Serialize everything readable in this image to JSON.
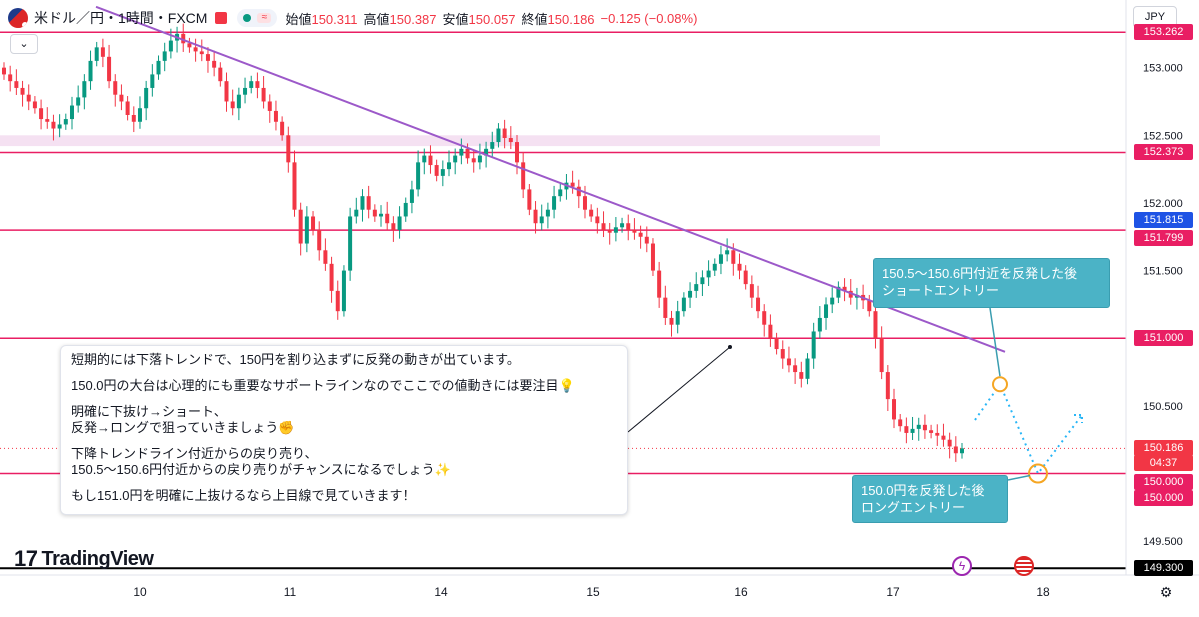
{
  "header": {
    "symbol": "米ドル／円・1時間・FXCM",
    "open_label": "始値",
    "open": "150.311",
    "high_label": "高値",
    "high": "150.387",
    "low_label": "安値",
    "low": "150.057",
    "close_label": "終値",
    "close": "150.186",
    "change": "−0.125 (−0.08%)",
    "wave_icon": "≈"
  },
  "currency_button": "JPY",
  "collapse_icon": "chevron-down-icon",
  "brand": "TradingView",
  "note": {
    "lines": [
      "短期的には下落トレンドで、150円を割り込まずに反発の動きが出ています。",
      "150.0円の大台は心理的にも重要なサポートラインなのでここでの値動きには要注目💡",
      "明確に下抜け→ショート、",
      "反発→ロングで狙っていきましょう✊",
      "下降トレンドライン付近からの戻り売り、",
      "150.5〜150.6円付近からの戻り売りがチャンスになるでしょう✨",
      "もし151.0円を明確に上抜けるなら上目線で見ていきます！"
    ]
  },
  "callouts": {
    "short": [
      "150.5〜150.6円付近を反発した後",
      "ショートエントリー"
    ],
    "long": [
      "150.0円を反発した後",
      "ロングエントリー"
    ]
  },
  "price_labels": {
    "current_price": "150.186",
    "countdown": "04:37",
    "mark_151815": "151.815",
    "levels": [
      "153.262",
      "152.373",
      "151.799",
      "151.000",
      "150.000",
      "150.000",
      "149.300"
    ]
  },
  "chart_data": {
    "type": "candlestick",
    "ylim": [
      149.25,
      153.5
    ],
    "y_ticks": [
      "153.000",
      "152.500",
      "152.000",
      "151.500",
      "150.500",
      "149.500"
    ],
    "x_ticks": [
      "10",
      "11",
      "14",
      "15",
      "16",
      "17",
      "18"
    ],
    "candle_count": 156,
    "bullish_color": "#089981",
    "bearish_color": "#f23645",
    "horizontal_lines": [
      153.262,
      152.373,
      151.799,
      151.0,
      150.0
    ],
    "horizontal_line_color": "#e91e63",
    "bottom_line": 149.3,
    "resistance_zone": [
      152.42,
      152.5
    ],
    "trend_line": {
      "from": [
        "10",
        153.45
      ],
      "to": [
        "17",
        150.9
      ],
      "color": "#9c59c9"
    },
    "projection": [
      [
        150.55,
        "up"
      ],
      [
        150.66,
        "short-entry"
      ],
      [
        150.0,
        "long-entry"
      ],
      [
        150.38,
        "up"
      ]
    ],
    "closes": [
      152.95,
      152.9,
      152.85,
      152.8,
      152.75,
      152.7,
      152.62,
      152.6,
      152.55,
      152.58,
      152.62,
      152.72,
      152.78,
      152.9,
      153.05,
      153.15,
      153.08,
      152.9,
      152.8,
      152.75,
      152.65,
      152.6,
      152.7,
      152.85,
      152.95,
      153.05,
      153.12,
      153.2,
      153.25,
      153.18,
      153.15,
      153.12,
      153.1,
      153.05,
      153.0,
      152.9,
      152.75,
      152.7,
      152.8,
      152.85,
      152.9,
      152.85,
      152.75,
      152.68,
      152.6,
      152.5,
      152.3,
      151.95,
      151.7,
      151.9,
      151.8,
      151.65,
      151.55,
      151.35,
      151.2,
      151.5,
      151.9,
      151.95,
      152.05,
      151.95,
      151.9,
      151.92,
      151.85,
      151.8,
      151.9,
      152.0,
      152.1,
      152.3,
      152.35,
      152.28,
      152.2,
      152.25,
      152.3,
      152.35,
      152.4,
      152.33,
      152.3,
      152.35,
      152.4,
      152.45,
      152.55,
      152.48,
      152.45,
      152.3,
      152.1,
      151.95,
      151.85,
      151.9,
      151.95,
      152.05,
      152.1,
      152.15,
      152.12,
      152.05,
      151.95,
      151.9,
      151.85,
      151.8,
      151.78,
      151.82,
      151.85,
      151.8,
      151.78,
      151.75,
      151.7,
      151.5,
      151.3,
      151.15,
      151.1,
      151.2,
      151.3,
      151.35,
      151.4,
      151.45,
      151.5,
      151.55,
      151.62,
      151.65,
      151.55,
      151.5,
      151.4,
      151.3,
      151.2,
      151.1,
      151.0,
      150.92,
      150.85,
      150.8,
      150.75,
      150.7,
      150.85,
      151.05,
      151.15,
      151.25,
      151.3,
      151.38,
      151.35,
      151.3,
      151.32,
      151.28,
      151.2,
      151.0,
      150.75,
      150.55,
      150.4,
      150.35,
      150.3,
      150.33,
      150.36,
      150.32,
      150.3,
      150.28,
      150.25,
      150.2,
      150.15,
      150.186
    ]
  }
}
